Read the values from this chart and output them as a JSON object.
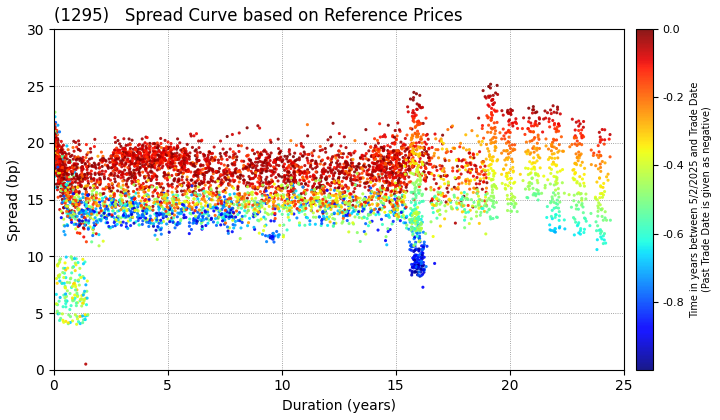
{
  "title": "(1295)   Spread Curve based on Reference Prices",
  "xlabel": "Duration (years)",
  "ylabel": "Spread (bp)",
  "xlim": [
    0,
    25
  ],
  "ylim": [
    0,
    30
  ],
  "xticks": [
    0,
    5,
    10,
    15,
    20,
    25
  ],
  "yticks": [
    0,
    5,
    10,
    15,
    20,
    25,
    30
  ],
  "colorbar_label": "Time in years between 5/2/2025 and Trade Date\n(Past Trade Date is given as negative)",
  "cmap_vmin": -1.0,
  "cmap_vmax": 0.0,
  "colorbar_ticks": [
    0.0,
    -0.2,
    -0.4,
    -0.6,
    -0.8
  ],
  "background_color": "#ffffff",
  "grid_color": "#888888",
  "title_fontsize": 12,
  "label_fontsize": 10,
  "seed": 42
}
